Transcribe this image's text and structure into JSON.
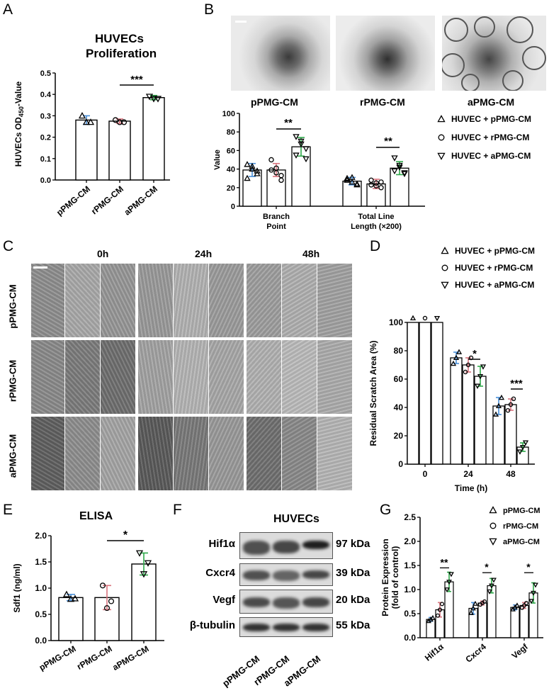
{
  "panels": {
    "a": "A",
    "b": "B",
    "c": "C",
    "d": "D",
    "e": "E",
    "f": "F",
    "g": "G"
  },
  "colors": {
    "blue": "#4a90d9",
    "red": "#d9747e",
    "green": "#2fa84a",
    "bar_fill": "#ffffff",
    "bar_stroke": "#000000"
  },
  "panel_a": {
    "title_line1": "HUVECs",
    "title_line2": "Proliferation",
    "ylabel_prefix": "HUVECs OD",
    "ylabel_sub": "450",
    "ylabel_suffix": "-Value",
    "sig": "***",
    "chart_data": {
      "type": "bar",
      "categories": [
        "pPMG-CM",
        "rPMG-CM",
        "aPMG-CM"
      ],
      "values": [
        0.28,
        0.275,
        0.385
      ],
      "errors": [
        0.02,
        0.01,
        0.01
      ],
      "ylim": [
        0.0,
        0.5
      ],
      "yticks": [
        "0.0",
        "0.1",
        "0.2",
        "0.3",
        "0.4",
        "0.5"
      ],
      "points": [
        [
          0.3,
          0.27,
          0.27
        ],
        [
          0.28,
          0.27,
          0.27
        ],
        [
          0.39,
          0.38,
          0.38
        ]
      ],
      "markers": [
        "triangle-up",
        "circle",
        "triangle-down"
      ]
    }
  },
  "panel_b": {
    "image_labels": [
      "pPMG-CM",
      "rPMG-CM",
      "aPMG-CM"
    ],
    "sig": [
      "**",
      "**"
    ],
    "legend": [
      "HUVEC + pPMG-CM",
      "HUVEC + rPMG-CM",
      "HUVEC + aPMG-CM"
    ],
    "chart_data": {
      "type": "bar",
      "ylabel": "Value",
      "ylim": [
        0,
        100
      ],
      "yticks": [
        "0",
        "20",
        "40",
        "60",
        "80",
        "100"
      ],
      "groups": [
        {
          "label_line1": "Branch",
          "label_line2": "Point",
          "values": [
            39,
            39,
            64
          ],
          "errors": [
            7,
            7,
            10
          ],
          "points": [
            [
              45,
              40,
              35,
              30,
              43,
              38
            ],
            [
              50,
              41,
              28,
              39,
              36,
              33
            ],
            [
              75,
              70,
              62,
              55,
              67,
              51
            ]
          ]
        },
        {
          "label_line1": "Total Line",
          "label_line2": "Length (×200)",
          "values": [
            27,
            24,
            41
          ],
          "errors": [
            4,
            5,
            7
          ],
          "points": [
            [
              30,
              26,
              23,
              28,
              31,
              24
            ],
            [
              28,
              25,
              20,
              23,
              22,
              26
            ],
            [
              52,
              44,
              36,
              38,
              42,
              35
            ]
          ]
        }
      ]
    }
  },
  "panel_c": {
    "time_labels": [
      "0h",
      "24h",
      "48h"
    ],
    "row_labels": [
      "pPMG-CM",
      "rPMG-CM",
      "aPMG-CM"
    ]
  },
  "panel_d": {
    "legend": [
      "HUVEC + pPMG-CM",
      "HUVEC + rPMG-CM",
      "HUVEC + aPMG-CM"
    ],
    "sig": [
      "*",
      "***"
    ],
    "chart_data": {
      "type": "bar",
      "xlabel": "Time (h)",
      "ylabel": "Residual Scratch Area (%)",
      "categories": [
        "0",
        "24",
        "48"
      ],
      "ylim": [
        0,
        100
      ],
      "yticks": [
        "0",
        "20",
        "40",
        "60",
        "80",
        "100"
      ],
      "series": [
        {
          "name": "HUVEC + pPMG-CM",
          "values": [
            100,
            75,
            41
          ],
          "errors": [
            0,
            4,
            6
          ]
        },
        {
          "name": "HUVEC + rPMG-CM",
          "values": [
            100,
            70,
            42
          ],
          "errors": [
            0,
            5,
            4
          ]
        },
        {
          "name": "HUVEC + aPMG-CM",
          "values": [
            100,
            62,
            12
          ],
          "errors": [
            0,
            7,
            3
          ]
        }
      ]
    }
  },
  "panel_e": {
    "title": "ELISA",
    "sig": "*",
    "chart_data": {
      "type": "bar",
      "ylabel": "Sdf1 (ng/ml)",
      "categories": [
        "pPMG-CM",
        "rPMG-CM",
        "aPMG-CM"
      ],
      "values": [
        0.82,
        0.82,
        1.46
      ],
      "errors": [
        0.06,
        0.23,
        0.21
      ],
      "ylim": [
        0.0,
        2.0
      ],
      "yticks": [
        "0.0",
        "0.5",
        "1.0",
        "1.5",
        "2.0"
      ],
      "points": [
        [
          0.88,
          0.8,
          0.79
        ],
        [
          1.05,
          0.75,
          0.62
        ],
        [
          1.67,
          1.48,
          1.27
        ]
      ]
    }
  },
  "panel_f": {
    "title": "HUVECs",
    "proteins": [
      {
        "name": "Hif1α",
        "kda": "97 kDa"
      },
      {
        "name": "Cxcr4",
        "kda": "39 kDa"
      },
      {
        "name": "Vegf",
        "kda": "20 kDa"
      },
      {
        "name": "β-tubulin",
        "kda": "55 kDa"
      }
    ],
    "lanes": [
      "pPMG-CM",
      "rPMG-CM",
      "aPMG-CM"
    ]
  },
  "panel_g": {
    "legend": [
      "pPMG-CM",
      "rPMG-CM",
      "aPMG-CM"
    ],
    "sig": [
      "**",
      "*",
      "*"
    ],
    "chart_data": {
      "type": "bar",
      "ylabel_line1": "Protein Expression",
      "ylabel_line2": "(fold of control)",
      "categories": [
        "Hif1α",
        "Cxcr4",
        "Vegf"
      ],
      "ylim": [
        0.0,
        2.5
      ],
      "yticks": [
        "0.0",
        "0.5",
        "1.0",
        "1.5",
        "2.0",
        "2.5"
      ],
      "series": [
        {
          "name": "pPMG-CM",
          "values": [
            0.38,
            0.61,
            0.63
          ],
          "errors": [
            0.04,
            0.12,
            0.05
          ]
        },
        {
          "name": "rPMG-CM",
          "values": [
            0.58,
            0.72,
            0.67
          ],
          "errors": [
            0.15,
            0.04,
            0.06
          ]
        },
        {
          "name": "aPMG-CM",
          "values": [
            1.16,
            1.08,
            0.93
          ],
          "errors": [
            0.2,
            0.15,
            0.21
          ]
        }
      ]
    }
  }
}
